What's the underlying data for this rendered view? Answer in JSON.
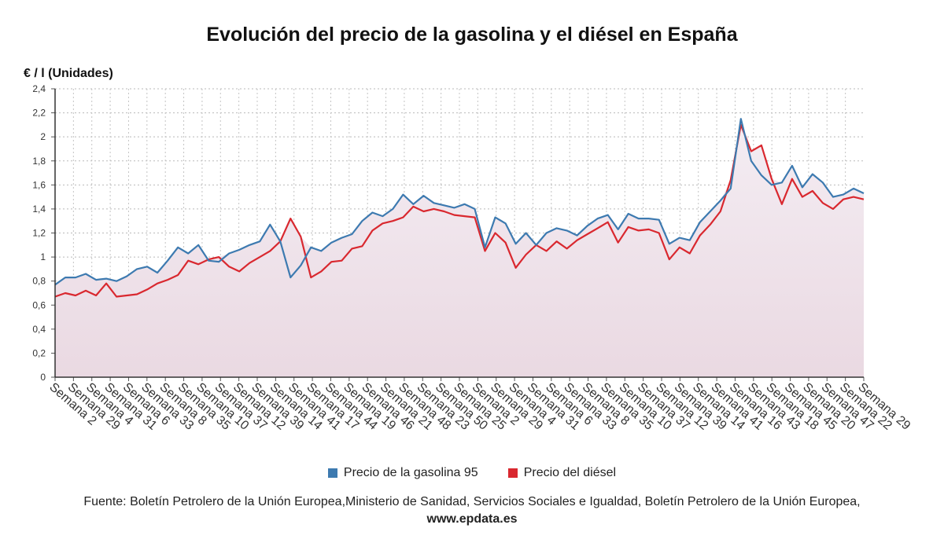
{
  "title": "Evolución del precio de la gasolina y el diésel en España",
  "y_unit_label": "€ / l (Unidades)",
  "legend": [
    {
      "label": "Precio de la gasolina 95",
      "color": "#3d7ab0"
    },
    {
      "label": "Precio del diésel",
      "color": "#d9282f"
    }
  ],
  "source_text": "Fuente: Boletín Petrolero de la Unión Europea,Ministerio de Sanidad, Servicios Sociales e Igualdad, Boletín Petrolero de la Unión Europea,",
  "source_url": "www.epdata.es",
  "chart_data": {
    "type": "area",
    "title": "Evolución del precio de la gasolina y el diésel en España",
    "ylabel": "€ / l (Unidades)",
    "ylim": [
      0,
      2.4
    ],
    "yticks": [
      "0",
      "0,2",
      "0,4",
      "0,6",
      "0,8",
      "1",
      "1,2",
      "1,4",
      "1,6",
      "1,8",
      "2",
      "2,2",
      "2,4"
    ],
    "grid": true,
    "legend_position": "bottom",
    "x_tick_labels": [
      "Semana 2",
      "Semana 29",
      "Semana 4",
      "Semana 31",
      "Semana 6",
      "Semana 33",
      "Semana 8",
      "Semana 35",
      "Semana 10",
      "Semana 37",
      "Semana 12",
      "Semana 39",
      "Semana 14",
      "Semana 41",
      "Semana 17",
      "Semana 44",
      "Semana 19",
      "Semana 46",
      "Semana 21",
      "Semana 48",
      "Semana 23",
      "Semana 50",
      "Semana 25",
      "Semana 2",
      "Semana 29",
      "Semana 4",
      "Semana 31",
      "Semana 6",
      "Semana 33",
      "Semana 8",
      "Semana 35",
      "Semana 10",
      "Semana 37",
      "Semana 12",
      "Semana 39",
      "Semana 14",
      "Semana 41",
      "Semana 16",
      "Semana 43",
      "Semana 18",
      "Semana 45",
      "Semana 20",
      "Semana 47",
      "Semana 22",
      "Semana 29"
    ],
    "series": [
      {
        "name": "Precio de la gasolina 95",
        "color": "#3d7ab0",
        "values": [
          0.77,
          0.83,
          0.83,
          0.86,
          0.81,
          0.82,
          0.8,
          0.84,
          0.9,
          0.92,
          0.87,
          0.97,
          1.08,
          1.03,
          1.1,
          0.97,
          0.96,
          1.03,
          1.06,
          1.1,
          1.13,
          1.27,
          1.13,
          0.83,
          0.93,
          1.08,
          1.05,
          1.12,
          1.16,
          1.19,
          1.3,
          1.37,
          1.34,
          1.4,
          1.52,
          1.44,
          1.51,
          1.45,
          1.43,
          1.41,
          1.44,
          1.4,
          1.08,
          1.33,
          1.28,
          1.11,
          1.2,
          1.1,
          1.2,
          1.24,
          1.22,
          1.18,
          1.26,
          1.32,
          1.35,
          1.23,
          1.36,
          1.32,
          1.32,
          1.31,
          1.11,
          1.16,
          1.14,
          1.29,
          1.38,
          1.47,
          1.57,
          2.15,
          1.8,
          1.68,
          1.6,
          1.62,
          1.76,
          1.58,
          1.69,
          1.62,
          1.5,
          1.52,
          1.57,
          1.53
        ]
      },
      {
        "name": "Precio del diésel",
        "color": "#d9282f",
        "values": [
          0.67,
          0.7,
          0.68,
          0.72,
          0.68,
          0.78,
          0.67,
          0.68,
          0.69,
          0.73,
          0.78,
          0.81,
          0.85,
          0.97,
          0.94,
          0.98,
          1.0,
          0.92,
          0.88,
          0.95,
          1.0,
          1.05,
          1.13,
          1.32,
          1.17,
          0.83,
          0.88,
          0.96,
          0.97,
          1.07,
          1.09,
          1.22,
          1.28,
          1.3,
          1.33,
          1.42,
          1.38,
          1.4,
          1.38,
          1.35,
          1.34,
          1.33,
          1.05,
          1.2,
          1.12,
          0.91,
          1.02,
          1.1,
          1.05,
          1.13,
          1.07,
          1.14,
          1.19,
          1.24,
          1.29,
          1.12,
          1.25,
          1.22,
          1.23,
          1.2,
          0.98,
          1.08,
          1.03,
          1.18,
          1.27,
          1.38,
          1.64,
          2.1,
          1.88,
          1.93,
          1.65,
          1.44,
          1.65,
          1.5,
          1.55,
          1.45,
          1.4,
          1.48,
          1.5,
          1.48
        ]
      }
    ]
  }
}
